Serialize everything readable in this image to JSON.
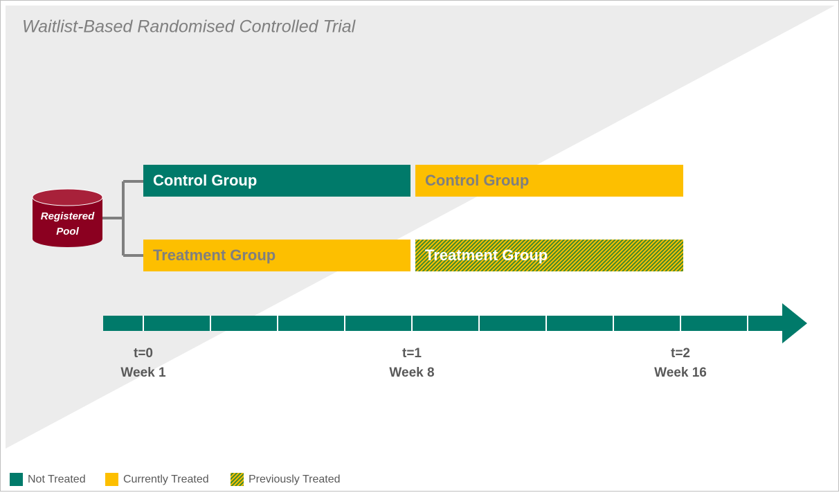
{
  "title": "Waitlist-Based Randomised Controlled Trial",
  "pool": {
    "line1": "Registered",
    "line2": "Pool"
  },
  "groups": [
    {
      "phase1": "Control Group",
      "phase2": "Control Group"
    },
    {
      "phase1": "Treatment Group",
      "phase2": "Treatment Group"
    }
  ],
  "timeline": [
    {
      "t": "t=0",
      "week": "Week 1"
    },
    {
      "t": "t=1",
      "week": "Week 8"
    },
    {
      "t": "t=2",
      "week": "Week 16"
    }
  ],
  "legend": [
    "Not Treated",
    "Currently Treated",
    "Previously Treated"
  ]
}
